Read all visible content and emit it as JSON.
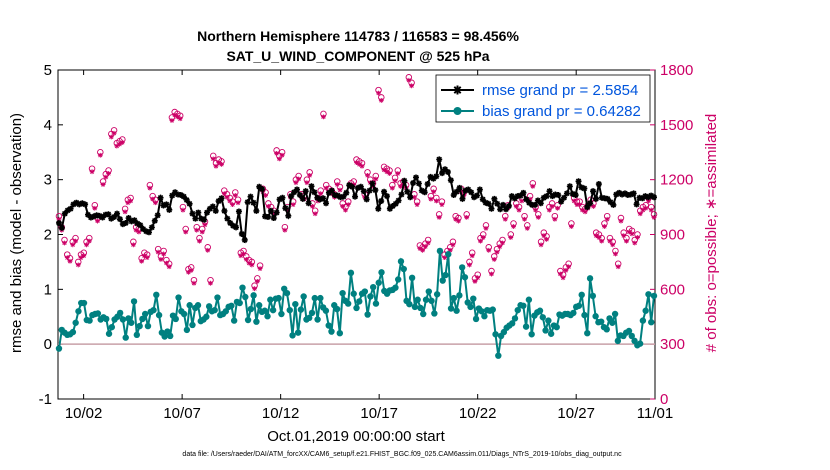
{
  "chart_data": {
    "type": "line",
    "title_line1": "Northern Hemisphere 114783 / 116583 = 98.456%",
    "title_line2": "SAT_U_WIND_COMPONENT @ 525 hPa",
    "xlabel": "Oct.01,2019 00:00:00 start",
    "ylabel_left": "rmse and bias (model - observation)",
    "ylabel_right": "# of obs: o=possible; ∗=assimilated",
    "footnote": "data file: /Users/raeder/DAI/ATM_forcXX/CAM6_setup/f.e21.FHIST_BGC.f09_025.CAM6assim.011/Diags_NTrS_2019-10/obs_diag_output.nc",
    "x_range": [
      0.7,
      31.0
    ],
    "x_ticks": [
      2,
      7,
      12,
      17,
      22,
      27,
      31
    ],
    "x_tick_labels": [
      "10/02",
      "10/07",
      "10/12",
      "10/17",
      "10/22",
      "10/27",
      "11/01"
    ],
    "ylim_left": [
      -1,
      5
    ],
    "y_ticks_left": [
      -1,
      0,
      1,
      2,
      3,
      4,
      5
    ],
    "ylim_right": [
      0,
      1800
    ],
    "y_ticks_right": [
      0,
      300,
      600,
      900,
      1200,
      1500,
      1800
    ],
    "grid": false,
    "legend_position": "top-right",
    "colors": {
      "rmse": "#000000",
      "bias": "#008080",
      "obs": "#cc0066",
      "zero_line": "#c8a0a8",
      "legend_text": "#0055dd"
    },
    "legend": [
      {
        "label": "rmse grand pr = 2.5854",
        "series": "rmse"
      },
      {
        "label": "bias grand pr = 0.64282",
        "series": "bias"
      }
    ],
    "series": [
      {
        "name": "rmse",
        "axis": "left",
        "marker": "star",
        "values": [
          2.21,
          2.12,
          2.38,
          2.44,
          2.47,
          2.55,
          2.58,
          2.55,
          2.57,
          2.55,
          2.36,
          2.31,
          2.33,
          2.35,
          2.34,
          2.31,
          2.36,
          2.37,
          2.29,
          2.32,
          2.38,
          2.28,
          2.19,
          2.21,
          2.3,
          2.24,
          2.26,
          2.2,
          2.17,
          2.1,
          2.06,
          2.04,
          2.13,
          2.25,
          2.35,
          2.67,
          2.53,
          2.55,
          2.45,
          2.71,
          2.77,
          2.73,
          2.72,
          2.69,
          2.63,
          2.56,
          2.38,
          2.29,
          2.4,
          2.29,
          2.27,
          2.4,
          2.47,
          2.51,
          2.43,
          2.61,
          2.66,
          2.43,
          2.29,
          2.21,
          2.16,
          2.13,
          2.42,
          2.01,
          1.9,
          2.59,
          2.69,
          2.58,
          2.43,
          2.87,
          2.83,
          2.33,
          2.32,
          2.43,
          2.3,
          2.4,
          2.64,
          2.67,
          2.48,
          2.34,
          2.7,
          2.77,
          2.82,
          2.72,
          2.65,
          2.79,
          2.57,
          2.88,
          2.77,
          2.67,
          2.64,
          2.66,
          2.57,
          2.76,
          2.8,
          2.72,
          2.71,
          2.68,
          2.69,
          2.76,
          2.9,
          2.87,
          2.69,
          2.85,
          2.87,
          2.79,
          2.64,
          2.8,
          2.93,
          2.81,
          2.47,
          2.61,
          2.78,
          2.7,
          2.47,
          2.52,
          2.56,
          2.62,
          2.73,
          2.98,
          2.78,
          2.68,
          2.94,
          3.04,
          2.93,
          2.8,
          2.77,
          2.92,
          3.05,
          3.02,
          3.06,
          3.37,
          3.12,
          3.19,
          3.14,
          2.99,
          2.72,
          2.78,
          2.85,
          2.65,
          2.8,
          2.82,
          2.77,
          2.68,
          2.71,
          2.82,
          2.64,
          2.58,
          2.56,
          2.47,
          2.65,
          2.56,
          2.46,
          2.54,
          2.46,
          2.52,
          2.7,
          2.66,
          2.7,
          2.71,
          2.76,
          2.64,
          2.58,
          2.54,
          2.54,
          2.62,
          2.57,
          2.67,
          2.7,
          2.79,
          2.7,
          2.73,
          2.72,
          2.6,
          2.67,
          2.75,
          2.88,
          2.74,
          2.72,
          2.97,
          2.86,
          2.84,
          2.5,
          2.57,
          2.79,
          2.65,
          2.92,
          2.67,
          2.66,
          2.65,
          2.59,
          2.54,
          2.73,
          2.76,
          2.73,
          2.75,
          2.72,
          2.73,
          2.75,
          2.55,
          2.67,
          2.66,
          2.7,
          2.68,
          2.71,
          2.68
        ]
      },
      {
        "name": "bias",
        "axis": "left",
        "marker": "circle",
        "values": [
          -0.08,
          0.26,
          0.21,
          0.17,
          0.18,
          0.22,
          0.39,
          0.6,
          0.75,
          0.75,
          0.44,
          0.43,
          0.53,
          0.55,
          0.56,
          0.45,
          0.49,
          0.46,
          0.19,
          0.31,
          0.45,
          0.5,
          0.57,
          0.45,
          0.12,
          0.47,
          0.39,
          0.78,
          0.17,
          0.33,
          0.46,
          0.55,
          0.33,
          0.59,
          0.62,
          0.9,
          0.53,
          0.21,
          0.14,
          0.23,
          0.15,
          0.52,
          0.46,
          0.85,
          0.6,
          0.55,
          0.26,
          0.71,
          0.35,
          0.66,
          0.71,
          0.42,
          0.45,
          0.5,
          0.69,
          0.6,
          0.62,
          0.85,
          0.53,
          0.55,
          0.6,
          0.68,
          0.7,
          0.43,
          0.77,
          0.75,
          1.03,
          0.86,
          0.44,
          0.64,
          0.89,
          0.41,
          0.71,
          0.59,
          0.61,
          0.51,
          0.81,
          0.62,
          0.83,
          0.84,
          0.55,
          1.01,
          0.93,
          0.62,
          0.16,
          0.73,
          0.21,
          0.63,
          0.87,
          0.45,
          0.48,
          0.57,
          0.84,
          0.45,
          0.84,
          0.67,
          0.61,
          0.34,
          0.23,
          0.71,
          0.64,
          0.2,
          0.93,
          0.79,
          0.74,
          1.3,
          0.92,
          0.66,
          0.78,
          0.92,
          0.96,
          0.54,
          0.87,
          1.04,
          0.74,
          1.12,
          1.31,
          0.97,
          0.92,
          0.98,
          0.99,
          1.03,
          1.18,
          1.51,
          1.37,
          0.79,
          0.73,
          1.21,
          0.68,
          0.81,
          0.66,
          0.55,
          0.81,
          0.96,
          0.79,
          0.56,
          0.91,
          1.7,
          1.16,
          1.26,
          1.64,
          0.65,
          0.84,
          0.61,
          0.89,
          1.4,
          1.22,
          0.76,
          0.68,
          0.83,
          0.46,
          0.65,
          0.6,
          0.51,
          0.62,
          0.61,
          0.63,
          0.18,
          -0.21,
          0.15,
          0.22,
          0.3,
          0.34,
          0.38,
          0.47,
          0.62,
          0.71,
          0.7,
          0.32,
          0.81,
          0.18,
          0.52,
          0.58,
          0.61,
          0.49,
          0.25,
          0.43,
          0.19,
          0.34,
          0.31,
          0.54,
          0.52,
          0.55,
          0.55,
          0.53,
          0.57,
          0.68,
          0.7,
          0.9,
          0.53,
          0.2,
          1.2,
          0.88,
          0.51,
          0.4,
          0.41,
          0.31,
          0.27,
          0.47,
          0.39,
          0.55,
          0.06,
          0.16,
          0.15,
          0.21,
          0.24,
          0.15,
          0.06,
          -0.02,
          0.01,
          0.43,
          0.61,
          0.91,
          0.4,
          0.88
        ]
      },
      {
        "name": "obs possible",
        "axis": "right",
        "marker": "o",
        "values": [
          1000,
          940,
          870,
          790,
          770,
          860,
          880,
          750,
          790,
          800,
          860,
          880,
          1260,
          1060,
          990,
          1350,
          1190,
          1230,
          1250,
          1450,
          1470,
          1400,
          1410,
          1420,
          1040,
          1090,
          1100,
          860,
          940,
          930,
          770,
          800,
          790,
          1170,
          1110,
          1090,
          820,
          780,
          810,
          760,
          740,
          1540,
          1570,
          1560,
          1550,
          1050,
          930,
          710,
          720,
          650,
          940,
          880,
          930,
          970,
          830,
          650,
          1330,
          1290,
          1310,
          1300,
          1140,
          1120,
          1100,
          1080,
          1130,
          1090,
          800,
          810,
          780,
          760,
          750,
          620,
          660,
          730,
          1150,
          1130,
          1070,
          1050,
          1030,
          1360,
          1330,
          1350,
          940,
          1050,
          1120,
          1080,
          1200,
          1220,
          1120,
          1110,
          1200,
          1240,
          1070,
          1030,
          1100,
          1140,
          1560,
          1170,
          1150,
          1140,
          1120,
          1190,
          1160,
          1070,
          1050,
          1080,
          1180,
          1190,
          1310,
          1300,
          1290,
          1120,
          1240,
          1200,
          1180,
          1220,
          1690,
          1650,
          1270,
          1260,
          1250,
          1170,
          1210,
          1250,
          1180,
          1190,
          1170,
          1760,
          1730,
          1120,
          1080,
          840,
          830,
          850,
          870,
          1110,
          1150,
          1100,
          1010,
          1080,
          790,
          810,
          830,
          860,
          1000,
          990,
          1150,
          1130,
          1010,
          750,
          800,
          660,
          680,
          880,
          900,
          950,
          830,
          700,
          780,
          820,
          850,
          870,
          1000,
          1060,
          900,
          960,
          1070,
          1050,
          1100,
          1000,
          950,
          1110,
          1180,
          1050,
          1010,
          860,
          910,
          890,
          1050,
          1070,
          1000,
          1060,
          700,
          680,
          720,
          740,
          960,
          1100,
          1080,
          1080,
          1050,
          1040,
          1060,
          1090,
          1070,
          910,
          900,
          880,
          960,
          1000,
          880,
          860,
          810,
          740,
          990,
          910,
          880,
          930,
          920,
          870,
          900,
          1030,
          1050,
          1060,
          1100,
          1050,
          1010
        ]
      }
    ]
  }
}
